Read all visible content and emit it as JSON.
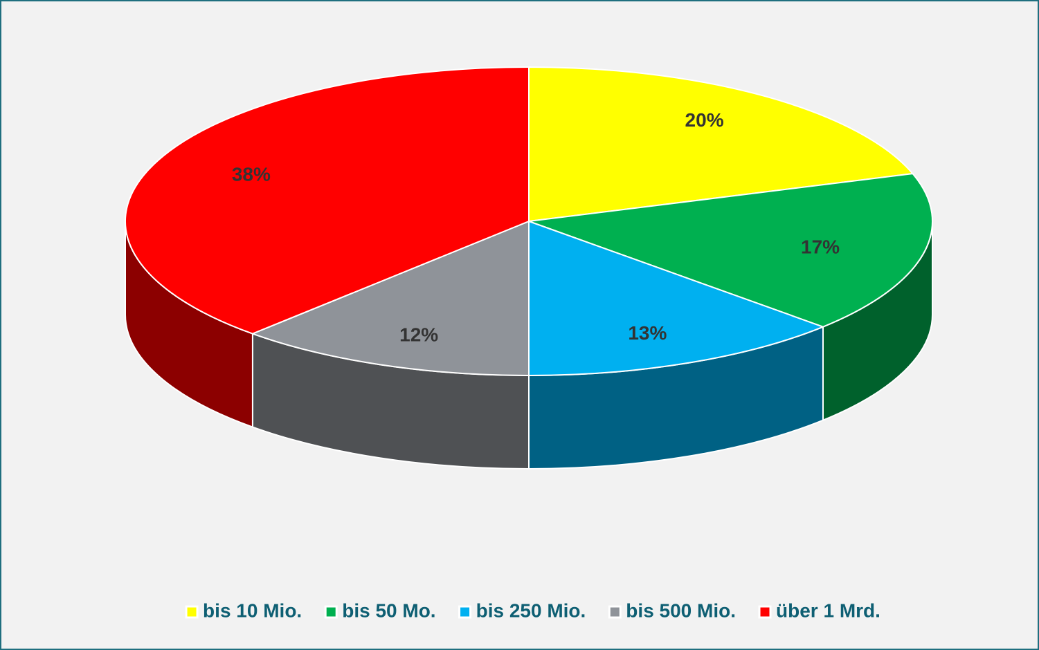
{
  "chart_data": {
    "type": "pie",
    "categories": [
      "bis 10 Mio.",
      "bis 50 Mo.",
      "bis 250 Mio.",
      "bis 500 Mio.",
      "über 1 Mrd."
    ],
    "values": [
      20,
      17,
      13,
      12,
      38
    ],
    "value_labels": [
      "20%",
      "17%",
      "13%",
      "12%",
      "38%"
    ],
    "colors": [
      "#ffff00",
      "#00b050",
      "#00b0f0",
      "#8f9399",
      "#ff0000"
    ],
    "legend": "bottom"
  }
}
